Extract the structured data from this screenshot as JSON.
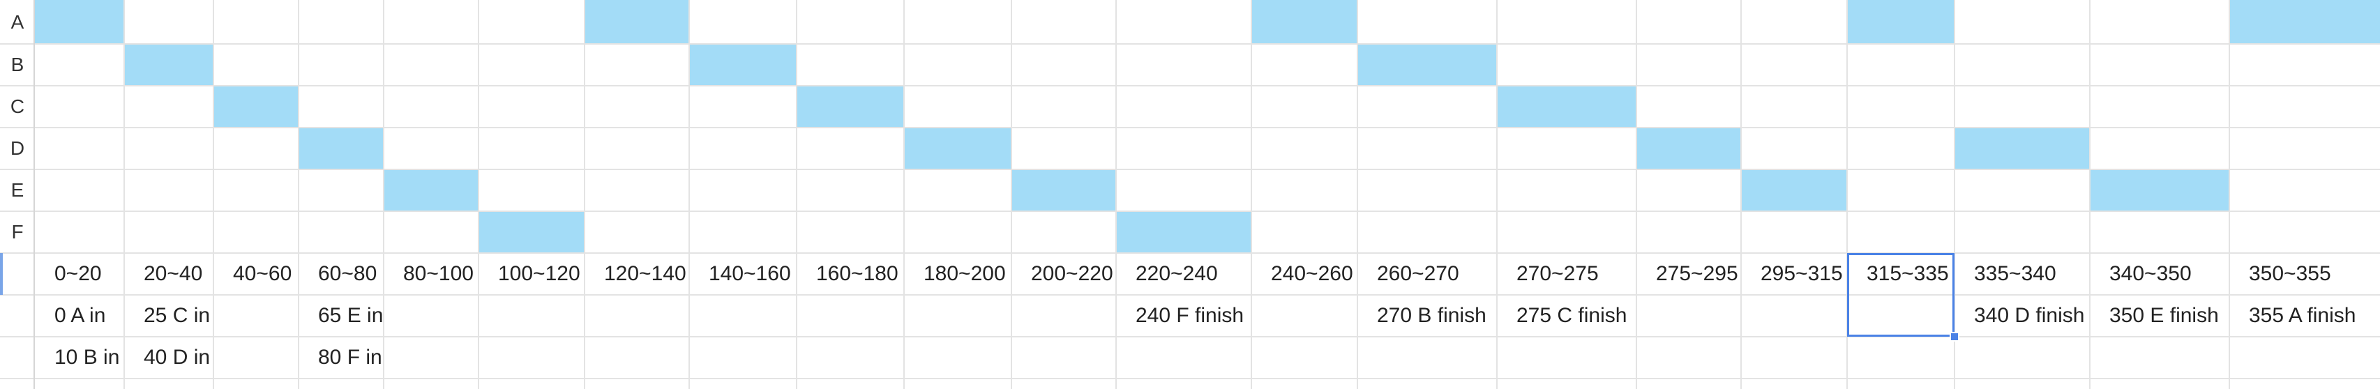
{
  "row_labels": [
    "A",
    "B",
    "C",
    "D",
    "E",
    "F"
  ],
  "intervals": [
    "0~20",
    "20~40",
    "40~60",
    "60~80",
    "80~100",
    "100~120",
    "120~140",
    "140~160",
    "160~180",
    "180~200",
    "200~220",
    "220~240",
    "240~260",
    "260~270",
    "270~275",
    "275~295",
    "295~315",
    "315~335",
    "335~340",
    "340~350",
    "350~355"
  ],
  "events_row1": [
    "0 A in",
    "25 C in",
    "",
    "65 E in",
    "",
    "",
    "",
    "",
    "",
    "",
    "",
    "240 F finish",
    "",
    "270 B finish",
    "275 C finish",
    "",
    "",
    "",
    "340 D finish",
    "350 E finish",
    "355 A finish"
  ],
  "events_row2": [
    "10 B in",
    "40 D in",
    "",
    "80 F in",
    "",
    "",
    "",
    "",
    "",
    "",
    "",
    "",
    "",
    "",
    "",
    "",
    "",
    "",
    "",
    "",
    ""
  ],
  "filled_colors": {
    "cell_fill": "#a3dcf7",
    "selection_border": "#4a82e6"
  },
  "schedule": [
    {
      "row": "A",
      "columns": [
        0,
        6,
        12,
        17,
        20
      ]
    },
    {
      "row": "B",
      "columns": [
        1,
        7,
        13
      ]
    },
    {
      "row": "C",
      "columns": [
        2,
        8,
        14
      ]
    },
    {
      "row": "D",
      "columns": [
        3,
        9,
        15,
        18
      ]
    },
    {
      "row": "E",
      "columns": [
        4,
        10,
        16,
        19
      ]
    },
    {
      "row": "F",
      "columns": [
        5,
        11
      ]
    }
  ],
  "selected_cell": {
    "row": "intervals",
    "column": 17
  }
}
